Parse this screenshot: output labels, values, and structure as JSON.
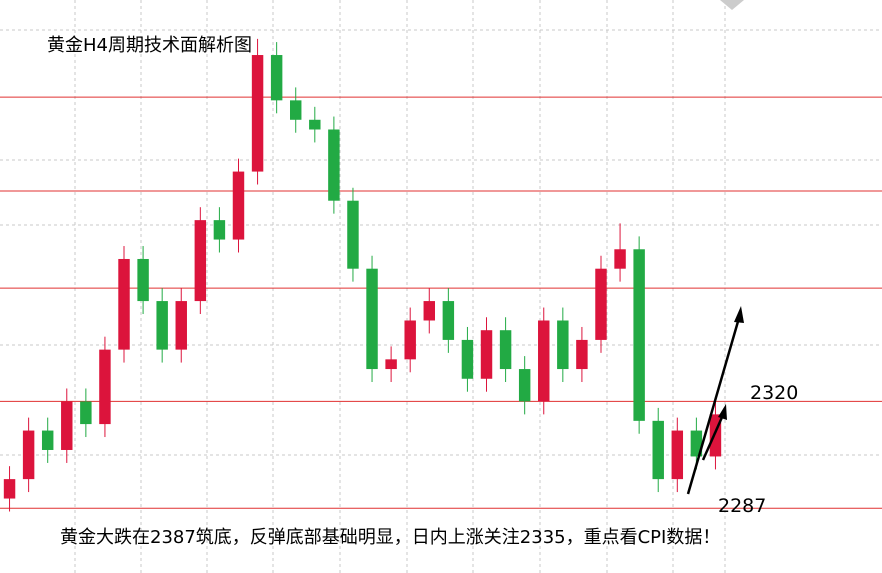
{
  "chart_data": {
    "type": "candlestick",
    "title": "黄金H4周期技术面解析图",
    "caption": "黄金大跌在2387筑底，反弹底部基础明显，日内上涨关注2335，重点看CPI数据！",
    "categories": [
      null,
      null,
      null,
      null,
      null,
      null,
      null,
      null,
      null,
      null,
      null,
      null,
      null,
      null,
      null,
      null,
      null,
      null,
      null,
      null,
      null,
      null,
      null,
      null,
      null,
      null,
      null,
      null,
      null,
      null,
      null,
      null,
      null,
      null,
      null,
      null,
      null,
      null
    ],
    "open": [
      2290,
      2296,
      2311,
      2305,
      2320,
      2313,
      2336,
      2364,
      2351,
      2336,
      2351,
      2376,
      2370,
      2391,
      2427,
      2413,
      2407,
      2404,
      2382,
      2361,
      2330,
      2333,
      2345,
      2351,
      2339,
      2327,
      2342,
      2330,
      2320,
      2345,
      2330,
      2339,
      2361,
      2367,
      2314,
      2296,
      2311,
      2303
    ],
    "high": [
      2300,
      2315,
      2315,
      2324,
      2324,
      2340,
      2368,
      2368,
      2355,
      2355,
      2380,
      2380,
      2395,
      2432,
      2431,
      2417,
      2411,
      2408,
      2386,
      2365,
      2337,
      2349,
      2355,
      2355,
      2343,
      2346,
      2346,
      2334,
      2349,
      2349,
      2343,
      2365,
      2375,
      2371,
      2318,
      2315,
      2315,
      2320
    ],
    "low": [
      2286,
      2292,
      2301,
      2301,
      2309,
      2309,
      2332,
      2347,
      2332,
      2332,
      2347,
      2366,
      2366,
      2387,
      2409,
      2403,
      2400,
      2378,
      2357,
      2326,
      2326,
      2329,
      2341,
      2335,
      2323,
      2323,
      2326,
      2316,
      2316,
      2326,
      2326,
      2335,
      2357,
      2310,
      2292,
      2292,
      2299,
      2299
    ],
    "close": [
      2296,
      2311,
      2305,
      2320,
      2313,
      2336,
      2364,
      2351,
      2336,
      2351,
      2376,
      2370,
      2391,
      2427,
      2413,
      2407,
      2404,
      2382,
      2361,
      2330,
      2333,
      2345,
      2351,
      2339,
      2327,
      2342,
      2330,
      2320,
      2345,
      2330,
      2339,
      2361,
      2367,
      2314,
      2296,
      2311,
      2303,
      2316
    ],
    "up_color": "#dc143c",
    "down_color": "#22aa44",
    "ylim": [
      2267,
      2444
    ],
    "hlines": [
      2414,
      2385,
      2355
    ],
    "key_levels": [
      2320,
      2287
    ],
    "level_color": "#e03030"
  }
}
